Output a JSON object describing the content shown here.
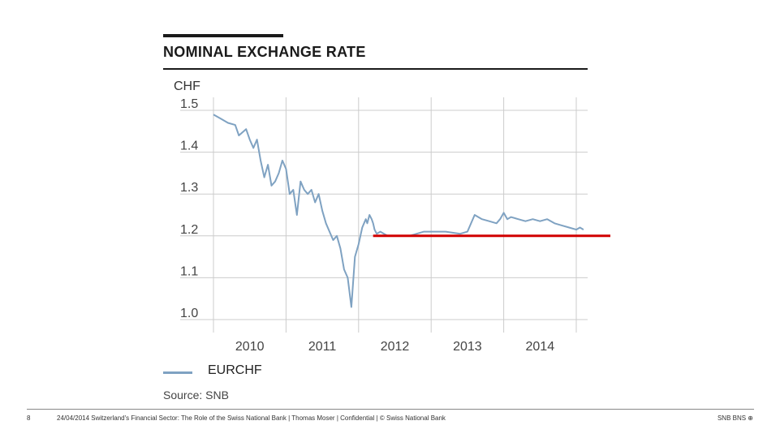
{
  "header": {
    "title": "NOMINAL EXCHANGE RATE"
  },
  "chart_data": {
    "type": "line",
    "ylabel": "CHF",
    "ylim": [
      1.0,
      1.5
    ],
    "yticks": [
      "1.5",
      "1.4",
      "1.3",
      "1.2",
      "1.1",
      "1.0"
    ],
    "xlim": [
      2009.0,
      2014.0
    ],
    "xticks": [
      "2010",
      "2011",
      "2012",
      "2013",
      "2014"
    ],
    "grid": true,
    "colors": {
      "series": "#7fa2c2",
      "floor": "#d10000",
      "grid": "#cccccc"
    },
    "series": [
      {
        "name": "EURCHF",
        "x": [
          2009.0,
          2009.1,
          2009.2,
          2009.3,
          2009.35,
          2009.45,
          2009.5,
          2009.55,
          2009.6,
          2009.65,
          2009.7,
          2009.75,
          2009.8,
          2009.85,
          2009.9,
          2009.95,
          2010.0,
          2010.05,
          2010.1,
          2010.15,
          2010.2,
          2010.25,
          2010.3,
          2010.35,
          2010.4,
          2010.45,
          2010.5,
          2010.55,
          2010.6,
          2010.65,
          2010.7,
          2010.75,
          2010.8,
          2010.85,
          2010.9,
          2010.95,
          2011.0,
          2011.05,
          2011.1,
          2011.12,
          2011.15,
          2011.18,
          2011.2,
          2011.22,
          2011.25,
          2011.3,
          2011.35,
          2011.4,
          2011.45,
          2011.5,
          2011.6,
          2011.7,
          2011.8,
          2011.9,
          2012.0,
          2012.2,
          2012.4,
          2012.5,
          2012.6,
          2012.7,
          2012.8,
          2012.9,
          2012.95,
          2013.0,
          2013.05,
          2013.1,
          2013.2,
          2013.3,
          2013.4,
          2013.5,
          2013.6,
          2013.7,
          2013.8,
          2013.9,
          2014.0,
          2014.05,
          2014.1
        ],
        "y": [
          1.49,
          1.48,
          1.47,
          1.465,
          1.44,
          1.455,
          1.43,
          1.41,
          1.43,
          1.38,
          1.34,
          1.37,
          1.32,
          1.33,
          1.35,
          1.38,
          1.36,
          1.3,
          1.31,
          1.25,
          1.33,
          1.31,
          1.3,
          1.31,
          1.28,
          1.3,
          1.26,
          1.23,
          1.21,
          1.19,
          1.2,
          1.17,
          1.12,
          1.1,
          1.03,
          1.15,
          1.18,
          1.22,
          1.24,
          1.23,
          1.25,
          1.24,
          1.23,
          1.215,
          1.205,
          1.21,
          1.205,
          1.2,
          1.2,
          1.2,
          1.2,
          1.2,
          1.205,
          1.21,
          1.21,
          1.21,
          1.205,
          1.21,
          1.25,
          1.24,
          1.235,
          1.23,
          1.24,
          1.255,
          1.24,
          1.245,
          1.24,
          1.235,
          1.24,
          1.235,
          1.24,
          1.23,
          1.225,
          1.22,
          1.215,
          1.22,
          1.215
        ]
      },
      {
        "name": "",
        "x": [
          2011.2,
          2015.0
        ],
        "y": [
          1.2,
          1.2
        ]
      }
    ]
  },
  "legend": {
    "series_label": "EURCHF"
  },
  "source": "Source: SNB",
  "footer": {
    "page": "8",
    "text": "24/04/2014 Switzerland's Financial Sector: The Role of the Swiss National Bank | Thomas Moser | Confidential | © Swiss National Bank",
    "logo": "SNB BNS ⊕"
  }
}
